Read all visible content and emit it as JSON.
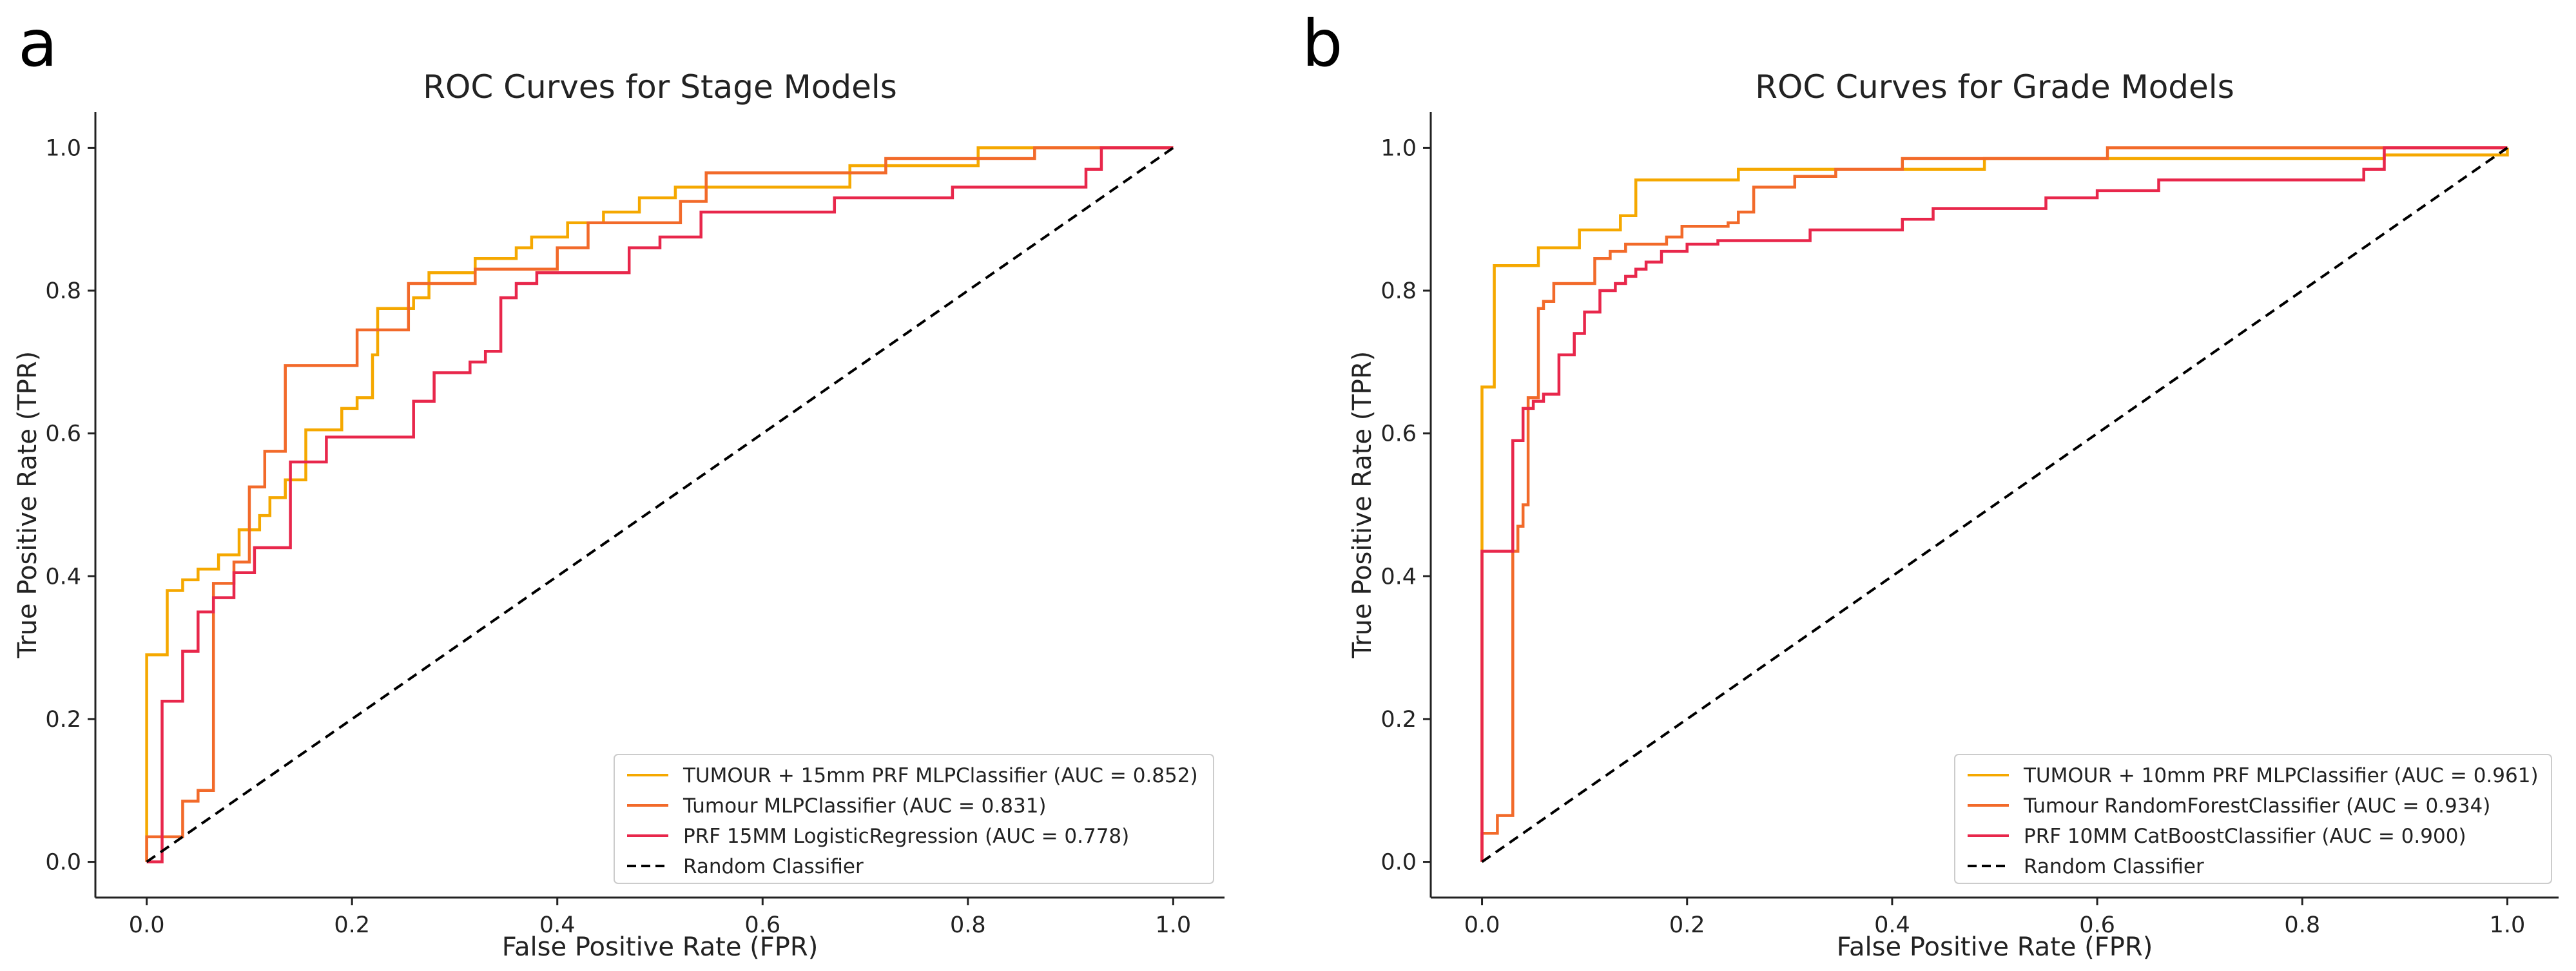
{
  "chart_data": [
    {
      "panel": "a",
      "type": "line",
      "title": "ROC Curves for Stage Models",
      "xlabel": "False Positive Rate (FPR)",
      "ylabel": "True Positive Rate (TPR)",
      "xlim": [
        -0.05,
        1.05
      ],
      "ylim": [
        -0.05,
        1.05
      ],
      "xticks": [
        0.0,
        0.2,
        0.4,
        0.6,
        0.8,
        1.0
      ],
      "yticks": [
        0.0,
        0.2,
        0.4,
        0.6,
        0.8,
        1.0
      ],
      "tick_labels": [
        "0.0",
        "0.2",
        "0.4",
        "0.6",
        "0.8",
        "1.0"
      ],
      "grid": false,
      "legend_position": "bottom-right",
      "series": [
        {
          "name": "TUMOUR + 15mm PRF MLPClassifier (AUC = 0.852)",
          "color": "#F5A800",
          "dashed": false,
          "steps": [
            [
              0,
              0
            ],
            [
              0,
              0.29
            ],
            [
              0.02,
              0.29
            ],
            [
              0.02,
              0.38
            ],
            [
              0.035,
              0.38
            ],
            [
              0.035,
              0.395
            ],
            [
              0.05,
              0.395
            ],
            [
              0.05,
              0.41
            ],
            [
              0.07,
              0.41
            ],
            [
              0.07,
              0.43
            ],
            [
              0.09,
              0.43
            ],
            [
              0.09,
              0.465
            ],
            [
              0.11,
              0.465
            ],
            [
              0.11,
              0.485
            ],
            [
              0.12,
              0.485
            ],
            [
              0.12,
              0.51
            ],
            [
              0.135,
              0.51
            ],
            [
              0.135,
              0.535
            ],
            [
              0.155,
              0.535
            ],
            [
              0.155,
              0.605
            ],
            [
              0.19,
              0.605
            ],
            [
              0.19,
              0.635
            ],
            [
              0.205,
              0.635
            ],
            [
              0.205,
              0.65
            ],
            [
              0.22,
              0.65
            ],
            [
              0.22,
              0.71
            ],
            [
              0.225,
              0.71
            ],
            [
              0.225,
              0.775
            ],
            [
              0.26,
              0.775
            ],
            [
              0.26,
              0.79
            ],
            [
              0.275,
              0.79
            ],
            [
              0.275,
              0.825
            ],
            [
              0.32,
              0.825
            ],
            [
              0.32,
              0.845
            ],
            [
              0.36,
              0.845
            ],
            [
              0.36,
              0.86
            ],
            [
              0.375,
              0.86
            ],
            [
              0.375,
              0.875
            ],
            [
              0.41,
              0.875
            ],
            [
              0.41,
              0.895
            ],
            [
              0.445,
              0.895
            ],
            [
              0.445,
              0.91
            ],
            [
              0.48,
              0.91
            ],
            [
              0.48,
              0.93
            ],
            [
              0.515,
              0.93
            ],
            [
              0.515,
              0.945
            ],
            [
              0.685,
              0.945
            ],
            [
              0.685,
              0.975
            ],
            [
              0.81,
              0.975
            ],
            [
              0.81,
              1.0
            ],
            [
              1.0,
              1.0
            ]
          ]
        },
        {
          "name": "Tumour MLPClassifier (AUC = 0.831)",
          "color": "#F26A2A",
          "dashed": false,
          "steps": [
            [
              0,
              0
            ],
            [
              0,
              0.035
            ],
            [
              0.035,
              0.035
            ],
            [
              0.035,
              0.085
            ],
            [
              0.05,
              0.085
            ],
            [
              0.05,
              0.1
            ],
            [
              0.065,
              0.1
            ],
            [
              0.065,
              0.39
            ],
            [
              0.085,
              0.39
            ],
            [
              0.085,
              0.42
            ],
            [
              0.1,
              0.42
            ],
            [
              0.1,
              0.525
            ],
            [
              0.115,
              0.525
            ],
            [
              0.115,
              0.575
            ],
            [
              0.135,
              0.575
            ],
            [
              0.135,
              0.695
            ],
            [
              0.205,
              0.695
            ],
            [
              0.205,
              0.745
            ],
            [
              0.255,
              0.745
            ],
            [
              0.255,
              0.81
            ],
            [
              0.32,
              0.81
            ],
            [
              0.32,
              0.83
            ],
            [
              0.4,
              0.83
            ],
            [
              0.4,
              0.86
            ],
            [
              0.43,
              0.86
            ],
            [
              0.43,
              0.895
            ],
            [
              0.52,
              0.895
            ],
            [
              0.52,
              0.925
            ],
            [
              0.545,
              0.925
            ],
            [
              0.545,
              0.965
            ],
            [
              0.72,
              0.965
            ],
            [
              0.72,
              0.985
            ],
            [
              0.865,
              0.985
            ],
            [
              0.865,
              1.0
            ],
            [
              1.0,
              1.0
            ]
          ]
        },
        {
          "name": "PRF 15MM LogisticRegression (AUC = 0.778)",
          "color": "#E8274B",
          "dashed": false,
          "steps": [
            [
              0,
              0
            ],
            [
              0.015,
              0
            ],
            [
              0.015,
              0.225
            ],
            [
              0.035,
              0.225
            ],
            [
              0.035,
              0.295
            ],
            [
              0.05,
              0.295
            ],
            [
              0.05,
              0.35
            ],
            [
              0.065,
              0.35
            ],
            [
              0.065,
              0.37
            ],
            [
              0.085,
              0.37
            ],
            [
              0.085,
              0.405
            ],
            [
              0.105,
              0.405
            ],
            [
              0.105,
              0.44
            ],
            [
              0.14,
              0.44
            ],
            [
              0.14,
              0.56
            ],
            [
              0.175,
              0.56
            ],
            [
              0.175,
              0.595
            ],
            [
              0.26,
              0.595
            ],
            [
              0.26,
              0.645
            ],
            [
              0.28,
              0.645
            ],
            [
              0.28,
              0.685
            ],
            [
              0.315,
              0.685
            ],
            [
              0.315,
              0.7
            ],
            [
              0.33,
              0.7
            ],
            [
              0.33,
              0.715
            ],
            [
              0.345,
              0.715
            ],
            [
              0.345,
              0.79
            ],
            [
              0.36,
              0.79
            ],
            [
              0.36,
              0.81
            ],
            [
              0.38,
              0.81
            ],
            [
              0.38,
              0.825
            ],
            [
              0.47,
              0.825
            ],
            [
              0.47,
              0.86
            ],
            [
              0.5,
              0.86
            ],
            [
              0.5,
              0.875
            ],
            [
              0.54,
              0.875
            ],
            [
              0.54,
              0.91
            ],
            [
              0.67,
              0.91
            ],
            [
              0.67,
              0.93
            ],
            [
              0.785,
              0.93
            ],
            [
              0.785,
              0.945
            ],
            [
              0.915,
              0.945
            ],
            [
              0.915,
              0.97
            ],
            [
              0.93,
              0.97
            ],
            [
              0.93,
              1.0
            ],
            [
              1.0,
              1.0
            ]
          ]
        },
        {
          "name": "Random Classifier",
          "color": "#000000",
          "dashed": true,
          "steps": [
            [
              0,
              0
            ],
            [
              1,
              1
            ]
          ]
        }
      ]
    },
    {
      "panel": "b",
      "type": "line",
      "title": "ROC Curves for Grade Models",
      "xlabel": "False Positive Rate (FPR)",
      "ylabel": "True Positive Rate (TPR)",
      "xlim": [
        -0.05,
        1.05
      ],
      "ylim": [
        -0.05,
        1.05
      ],
      "xticks": [
        0.0,
        0.2,
        0.4,
        0.6,
        0.8,
        1.0
      ],
      "yticks": [
        0.0,
        0.2,
        0.4,
        0.6,
        0.8,
        1.0
      ],
      "tick_labels": [
        "0.0",
        "0.2",
        "0.4",
        "0.6",
        "0.8",
        "1.0"
      ],
      "grid": false,
      "legend_position": "bottom-right",
      "series": [
        {
          "name": "TUMOUR + 10mm PRF MLPClassifier (AUC = 0.961)",
          "color": "#F5A800",
          "dashed": false,
          "steps": [
            [
              0,
              0
            ],
            [
              0,
              0.665
            ],
            [
              0.012,
              0.665
            ],
            [
              0.012,
              0.835
            ],
            [
              0.055,
              0.835
            ],
            [
              0.055,
              0.86
            ],
            [
              0.095,
              0.86
            ],
            [
              0.095,
              0.885
            ],
            [
              0.135,
              0.885
            ],
            [
              0.135,
              0.905
            ],
            [
              0.15,
              0.905
            ],
            [
              0.15,
              0.955
            ],
            [
              0.25,
              0.955
            ],
            [
              0.25,
              0.97
            ],
            [
              0.49,
              0.97
            ],
            [
              0.49,
              0.985
            ],
            [
              0.88,
              0.985
            ],
            [
              0.88,
              0.99
            ],
            [
              1.0,
              0.99
            ],
            [
              1.0,
              1.0
            ]
          ]
        },
        {
          "name": "Tumour RandomForestClassifier (AUC = 0.934)",
          "color": "#F26A2A",
          "dashed": false,
          "steps": [
            [
              0,
              0
            ],
            [
              0,
              0.04
            ],
            [
              0.015,
              0.04
            ],
            [
              0.015,
              0.065
            ],
            [
              0.03,
              0.065
            ],
            [
              0.03,
              0.435
            ],
            [
              0.035,
              0.435
            ],
            [
              0.035,
              0.47
            ],
            [
              0.04,
              0.47
            ],
            [
              0.04,
              0.5
            ],
            [
              0.045,
              0.5
            ],
            [
              0.045,
              0.65
            ],
            [
              0.055,
              0.65
            ],
            [
              0.055,
              0.775
            ],
            [
              0.06,
              0.775
            ],
            [
              0.06,
              0.785
            ],
            [
              0.07,
              0.785
            ],
            [
              0.07,
              0.81
            ],
            [
              0.11,
              0.81
            ],
            [
              0.11,
              0.845
            ],
            [
              0.125,
              0.845
            ],
            [
              0.125,
              0.855
            ],
            [
              0.14,
              0.855
            ],
            [
              0.14,
              0.865
            ],
            [
              0.18,
              0.865
            ],
            [
              0.18,
              0.875
            ],
            [
              0.195,
              0.875
            ],
            [
              0.195,
              0.89
            ],
            [
              0.24,
              0.89
            ],
            [
              0.24,
              0.895
            ],
            [
              0.25,
              0.895
            ],
            [
              0.25,
              0.91
            ],
            [
              0.265,
              0.91
            ],
            [
              0.265,
              0.945
            ],
            [
              0.305,
              0.945
            ],
            [
              0.305,
              0.96
            ],
            [
              0.345,
              0.96
            ],
            [
              0.345,
              0.97
            ],
            [
              0.41,
              0.97
            ],
            [
              0.41,
              0.985
            ],
            [
              0.61,
              0.985
            ],
            [
              0.61,
              1.0
            ],
            [
              1.0,
              1.0
            ]
          ]
        },
        {
          "name": "PRF 10MM CatBoostClassifier (AUC = 0.900)",
          "color": "#E8274B",
          "dashed": false,
          "steps": [
            [
              0,
              0
            ],
            [
              0,
              0.435
            ],
            [
              0.03,
              0.435
            ],
            [
              0.03,
              0.59
            ],
            [
              0.04,
              0.59
            ],
            [
              0.04,
              0.635
            ],
            [
              0.05,
              0.635
            ],
            [
              0.05,
              0.645
            ],
            [
              0.06,
              0.645
            ],
            [
              0.06,
              0.655
            ],
            [
              0.075,
              0.655
            ],
            [
              0.075,
              0.71
            ],
            [
              0.09,
              0.71
            ],
            [
              0.09,
              0.74
            ],
            [
              0.1,
              0.74
            ],
            [
              0.1,
              0.77
            ],
            [
              0.115,
              0.77
            ],
            [
              0.115,
              0.8
            ],
            [
              0.13,
              0.8
            ],
            [
              0.13,
              0.81
            ],
            [
              0.14,
              0.81
            ],
            [
              0.14,
              0.82
            ],
            [
              0.15,
              0.82
            ],
            [
              0.15,
              0.83
            ],
            [
              0.16,
              0.83
            ],
            [
              0.16,
              0.84
            ],
            [
              0.175,
              0.84
            ],
            [
              0.175,
              0.855
            ],
            [
              0.2,
              0.855
            ],
            [
              0.2,
              0.865
            ],
            [
              0.23,
              0.865
            ],
            [
              0.23,
              0.87
            ],
            [
              0.32,
              0.87
            ],
            [
              0.32,
              0.885
            ],
            [
              0.41,
              0.885
            ],
            [
              0.41,
              0.9
            ],
            [
              0.44,
              0.9
            ],
            [
              0.44,
              0.915
            ],
            [
              0.55,
              0.915
            ],
            [
              0.55,
              0.93
            ],
            [
              0.6,
              0.93
            ],
            [
              0.6,
              0.94
            ],
            [
              0.66,
              0.94
            ],
            [
              0.66,
              0.955
            ],
            [
              0.86,
              0.955
            ],
            [
              0.86,
              0.97
            ],
            [
              0.88,
              0.97
            ],
            [
              0.88,
              1.0
            ],
            [
              1.0,
              1.0
            ]
          ]
        },
        {
          "name": "Random Classifier",
          "color": "#000000",
          "dashed": true,
          "steps": [
            [
              0,
              0
            ],
            [
              1,
              1
            ]
          ]
        }
      ]
    }
  ]
}
